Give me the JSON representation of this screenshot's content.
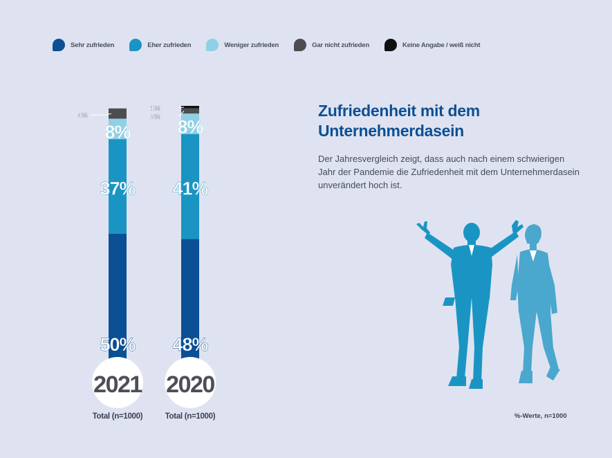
{
  "title": "Zufriedenheit mit dem Unternehmerdasein",
  "description": "Der Jahresvergleich zeigt, dass auch nach einem schwierigen Jahr der Pandemie die Zufriedenheit mit dem Unternehmerdasein unverändert hoch ist.",
  "footnote": "%-Werte, n=1000",
  "colors": {
    "background": "#dfe3f1",
    "sehr": "#0b4f94",
    "eher": "#1a95c3",
    "weniger": "#8fd0e6",
    "gar_nicht": "#4d4d4f",
    "keine": "#111111",
    "heading": "#0d4f93"
  },
  "legend": [
    {
      "label": "Sehr zufrieden",
      "color": "#0b4f94"
    },
    {
      "label": "Eher zufrieden",
      "color": "#1a95c3"
    },
    {
      "label": "Weniger zufrieden",
      "color": "#8fd0e6"
    },
    {
      "label": "Gar nicht zufrieden",
      "color": "#4d4d4f"
    },
    {
      "label": "Keine Angabe / weiß nicht",
      "color": "#111111"
    }
  ],
  "chart_data": {
    "type": "bar",
    "stacked": true,
    "categories": [
      "2021",
      "2020"
    ],
    "category_sublabel": "Total (n=1000)",
    "series": [
      {
        "name": "Sehr zufrieden",
        "values": [
          50,
          48
        ],
        "labels": [
          "50%",
          "48%"
        ]
      },
      {
        "name": "Eher zufrieden",
        "values": [
          37,
          41
        ],
        "labels": [
          "37%",
          "41%"
        ]
      },
      {
        "name": "Weniger zufrieden",
        "values": [
          8,
          8
        ],
        "labels": [
          "8%",
          "8%"
        ]
      },
      {
        "name": "Gar nicht zufrieden",
        "values": [
          4,
          2
        ],
        "labels": [
          "4%",
          "2%"
        ]
      },
      {
        "name": "Keine Angabe / weiß nicht",
        "values": [
          0,
          1
        ],
        "labels": [
          "",
          "1%"
        ]
      }
    ],
    "ylim": [
      0,
      100
    ],
    "legend_position": "top"
  }
}
